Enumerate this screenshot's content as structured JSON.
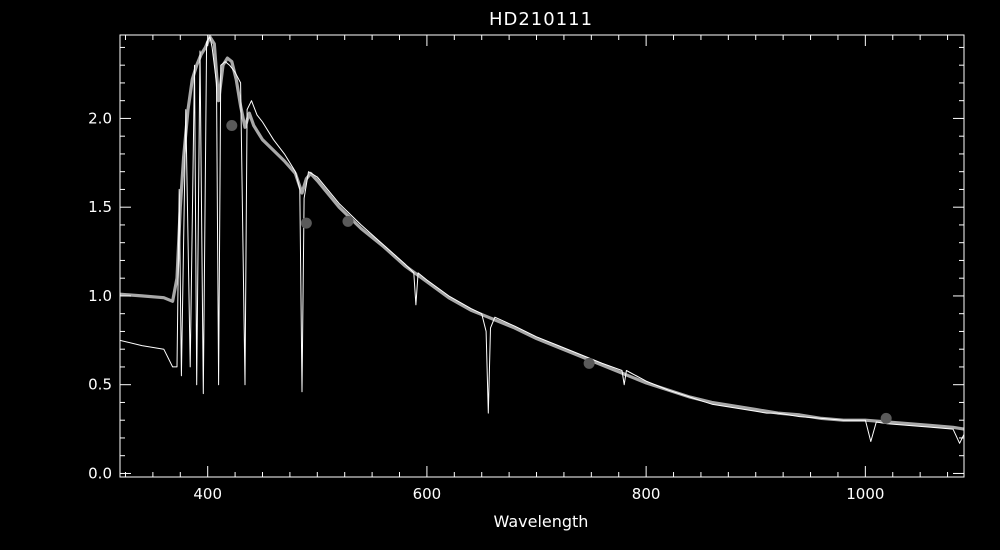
{
  "chart_data": {
    "type": "line",
    "title": "HD210111",
    "xlabel": "Wavelength",
    "ylabel": "",
    "xlim": [
      320,
      1090
    ],
    "ylim": [
      -0.02,
      2.47
    ],
    "grid": false,
    "x_ticks": [
      400,
      600,
      800,
      1000
    ],
    "x_tick_labels": [
      "400",
      "600",
      "800",
      "1000"
    ],
    "y_ticks": [
      0.0,
      0.5,
      1.0,
      1.5,
      2.0
    ],
    "y_tick_labels": [
      "0.0",
      "0.5",
      "1.0",
      "1.5",
      "2.0"
    ],
    "colors": {
      "background": "#000000",
      "axes": "#ffffff",
      "model": "#a8a8a8",
      "observed": "#ffffff",
      "markers": "#5a5a5a"
    },
    "series": [
      {
        "style": "model-spectrum",
        "x": [
          320,
          340,
          360,
          368,
          372,
          375,
          378,
          382,
          386,
          390,
          394,
          398,
          402,
          406,
          410,
          414,
          418,
          422,
          426,
          430,
          434,
          438,
          442,
          446,
          450,
          460,
          470,
          480,
          486,
          490,
          494,
          500,
          520,
          540,
          560,
          580,
          600,
          620,
          640,
          656,
          660,
          680,
          700,
          720,
          740,
          760,
          780,
          800,
          820,
          840,
          860,
          880,
          900,
          920,
          940,
          960,
          980,
          1000,
          1020,
          1040,
          1060,
          1080,
          1090
        ],
        "y": [
          1.01,
          1.0,
          0.99,
          0.97,
          1.1,
          1.5,
          1.78,
          2.05,
          2.22,
          2.3,
          2.36,
          2.4,
          2.46,
          2.42,
          2.1,
          2.3,
          2.34,
          2.32,
          2.22,
          2.07,
          1.95,
          2.03,
          1.96,
          1.92,
          1.88,
          1.82,
          1.76,
          1.69,
          1.58,
          1.66,
          1.69,
          1.65,
          1.5,
          1.38,
          1.28,
          1.17,
          1.08,
          0.99,
          0.92,
          0.88,
          0.87,
          0.82,
          0.76,
          0.71,
          0.66,
          0.61,
          0.56,
          0.51,
          0.47,
          0.43,
          0.4,
          0.38,
          0.36,
          0.34,
          0.33,
          0.31,
          0.3,
          0.3,
          0.29,
          0.28,
          0.27,
          0.26,
          0.25
        ]
      },
      {
        "style": "observed-spectrum",
        "x": [
          320,
          340,
          360,
          368,
          372,
          374,
          376,
          380,
          384,
          388,
          390,
          393,
          396,
          399,
          402,
          404,
          408,
          410,
          412,
          416,
          420,
          425,
          430,
          434,
          436,
          440,
          445,
          450,
          460,
          470,
          480,
          484,
          486,
          488,
          492,
          500,
          520,
          540,
          560,
          580,
          588,
          590,
          592,
          600,
          620,
          640,
          650,
          654,
          656,
          658,
          662,
          680,
          700,
          720,
          740,
          760,
          778,
          780,
          782,
          800,
          820,
          840,
          850,
          860,
          870,
          880,
          890,
          900,
          910,
          920,
          940,
          960,
          980,
          1000,
          1005,
          1010,
          1020,
          1040,
          1060,
          1080,
          1086,
          1090
        ],
        "y": [
          0.75,
          0.72,
          0.7,
          0.6,
          0.6,
          1.6,
          0.55,
          2.05,
          0.6,
          2.3,
          0.5,
          2.38,
          0.45,
          2.43,
          2.46,
          2.4,
          2.2,
          0.5,
          2.3,
          2.32,
          2.3,
          2.26,
          2.2,
          0.5,
          2.05,
          2.1,
          2.02,
          1.98,
          1.88,
          1.8,
          1.7,
          1.6,
          0.46,
          1.55,
          1.7,
          1.67,
          1.52,
          1.4,
          1.29,
          1.18,
          1.13,
          0.95,
          1.13,
          1.09,
          1.0,
          0.93,
          0.9,
          0.8,
          0.34,
          0.82,
          0.88,
          0.83,
          0.77,
          0.72,
          0.67,
          0.62,
          0.58,
          0.5,
          0.58,
          0.52,
          0.47,
          0.43,
          0.41,
          0.39,
          0.38,
          0.37,
          0.36,
          0.35,
          0.34,
          0.34,
          0.32,
          0.31,
          0.3,
          0.3,
          0.18,
          0.29,
          0.28,
          0.27,
          0.26,
          0.25,
          0.17,
          0.22
        ]
      },
      {
        "style": "photometry-points",
        "x": [
          422,
          490,
          528,
          748,
          1019
        ],
        "y": [
          1.96,
          1.41,
          1.42,
          0.62,
          0.31
        ]
      }
    ]
  }
}
